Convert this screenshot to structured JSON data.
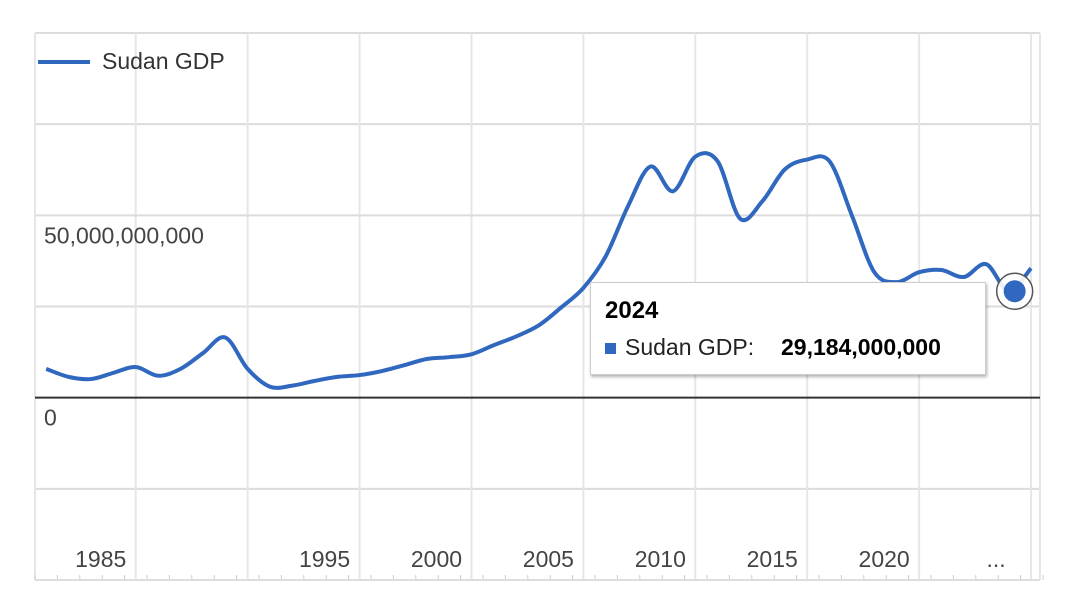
{
  "chart_data": {
    "type": "line",
    "x": [
      1981,
      1982,
      1983,
      1984,
      1985,
      1986,
      1987,
      1988,
      1989,
      1990,
      1991,
      1992,
      1993,
      1994,
      1995,
      1996,
      1997,
      1998,
      1999,
      2000,
      2001,
      2002,
      2003,
      2004,
      2005,
      2006,
      2007,
      2008,
      2009,
      2010,
      2011,
      2012,
      2013,
      2014,
      2015,
      2016,
      2017,
      2018,
      2019,
      2020,
      2021,
      2022,
      2023,
      2024,
      2025
    ],
    "series": [
      {
        "name": "Sudan GDP",
        "color": "#3068c0",
        "values": [
          7900000000,
          5700000000,
          5100000000,
          6800000000,
          8400000000,
          6000000000,
          7900000000,
          12200000000,
          16500000000,
          7900000000,
          3000000000,
          3300000000,
          4600000000,
          5700000000,
          6200000000,
          7300000000,
          8900000000,
          10600000000,
          11100000000,
          11900000000,
          14400000000,
          16800000000,
          19800000000,
          24700000000,
          30100000000,
          38800000000,
          52600000000,
          63400000000,
          56600000000,
          66100000000,
          64800000000,
          49100000000,
          53900000000,
          62600000000,
          65300000000,
          64800000000,
          49900000000,
          34400000000,
          31700000000,
          34400000000,
          35000000000,
          33100000000,
          36600000000,
          29184000000,
          35500000000
        ]
      }
    ],
    "xlim": [
      1980.5,
      2025.4
    ],
    "xticks": [
      1985,
      1995,
      2000,
      2005,
      2010,
      2015,
      2020,
      {
        "value": 2025,
        "label": "..."
      }
    ],
    "xgrid": [
      1985,
      1990,
      1995,
      2000,
      2005,
      2010,
      2015,
      2020,
      2025
    ],
    "ylim": [
      -50000000000,
      100000000000
    ],
    "yticks": [
      0,
      {
        "value": 50000000000,
        "label": "50,000,000,000"
      }
    ],
    "ygrid": [
      -50000000000,
      -25000000000,
      25000000000,
      75000000000,
      100000000000
    ],
    "grid": true,
    "legend": "top-left",
    "tooltip": {
      "x": 2024,
      "label": "Sudan GDP:",
      "value": 29184000000,
      "value_label": "29,184,000,000"
    }
  }
}
